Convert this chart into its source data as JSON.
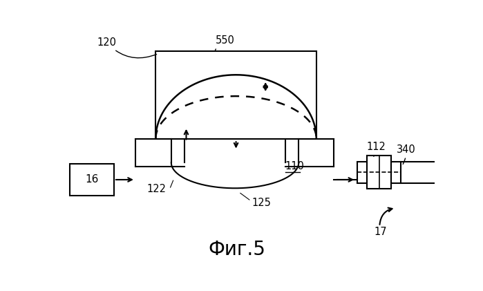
{
  "title": "Фиг.5",
  "title_fontsize": 20,
  "background_color": "#ffffff",
  "line_color": "#000000",
  "lw": 1.5
}
